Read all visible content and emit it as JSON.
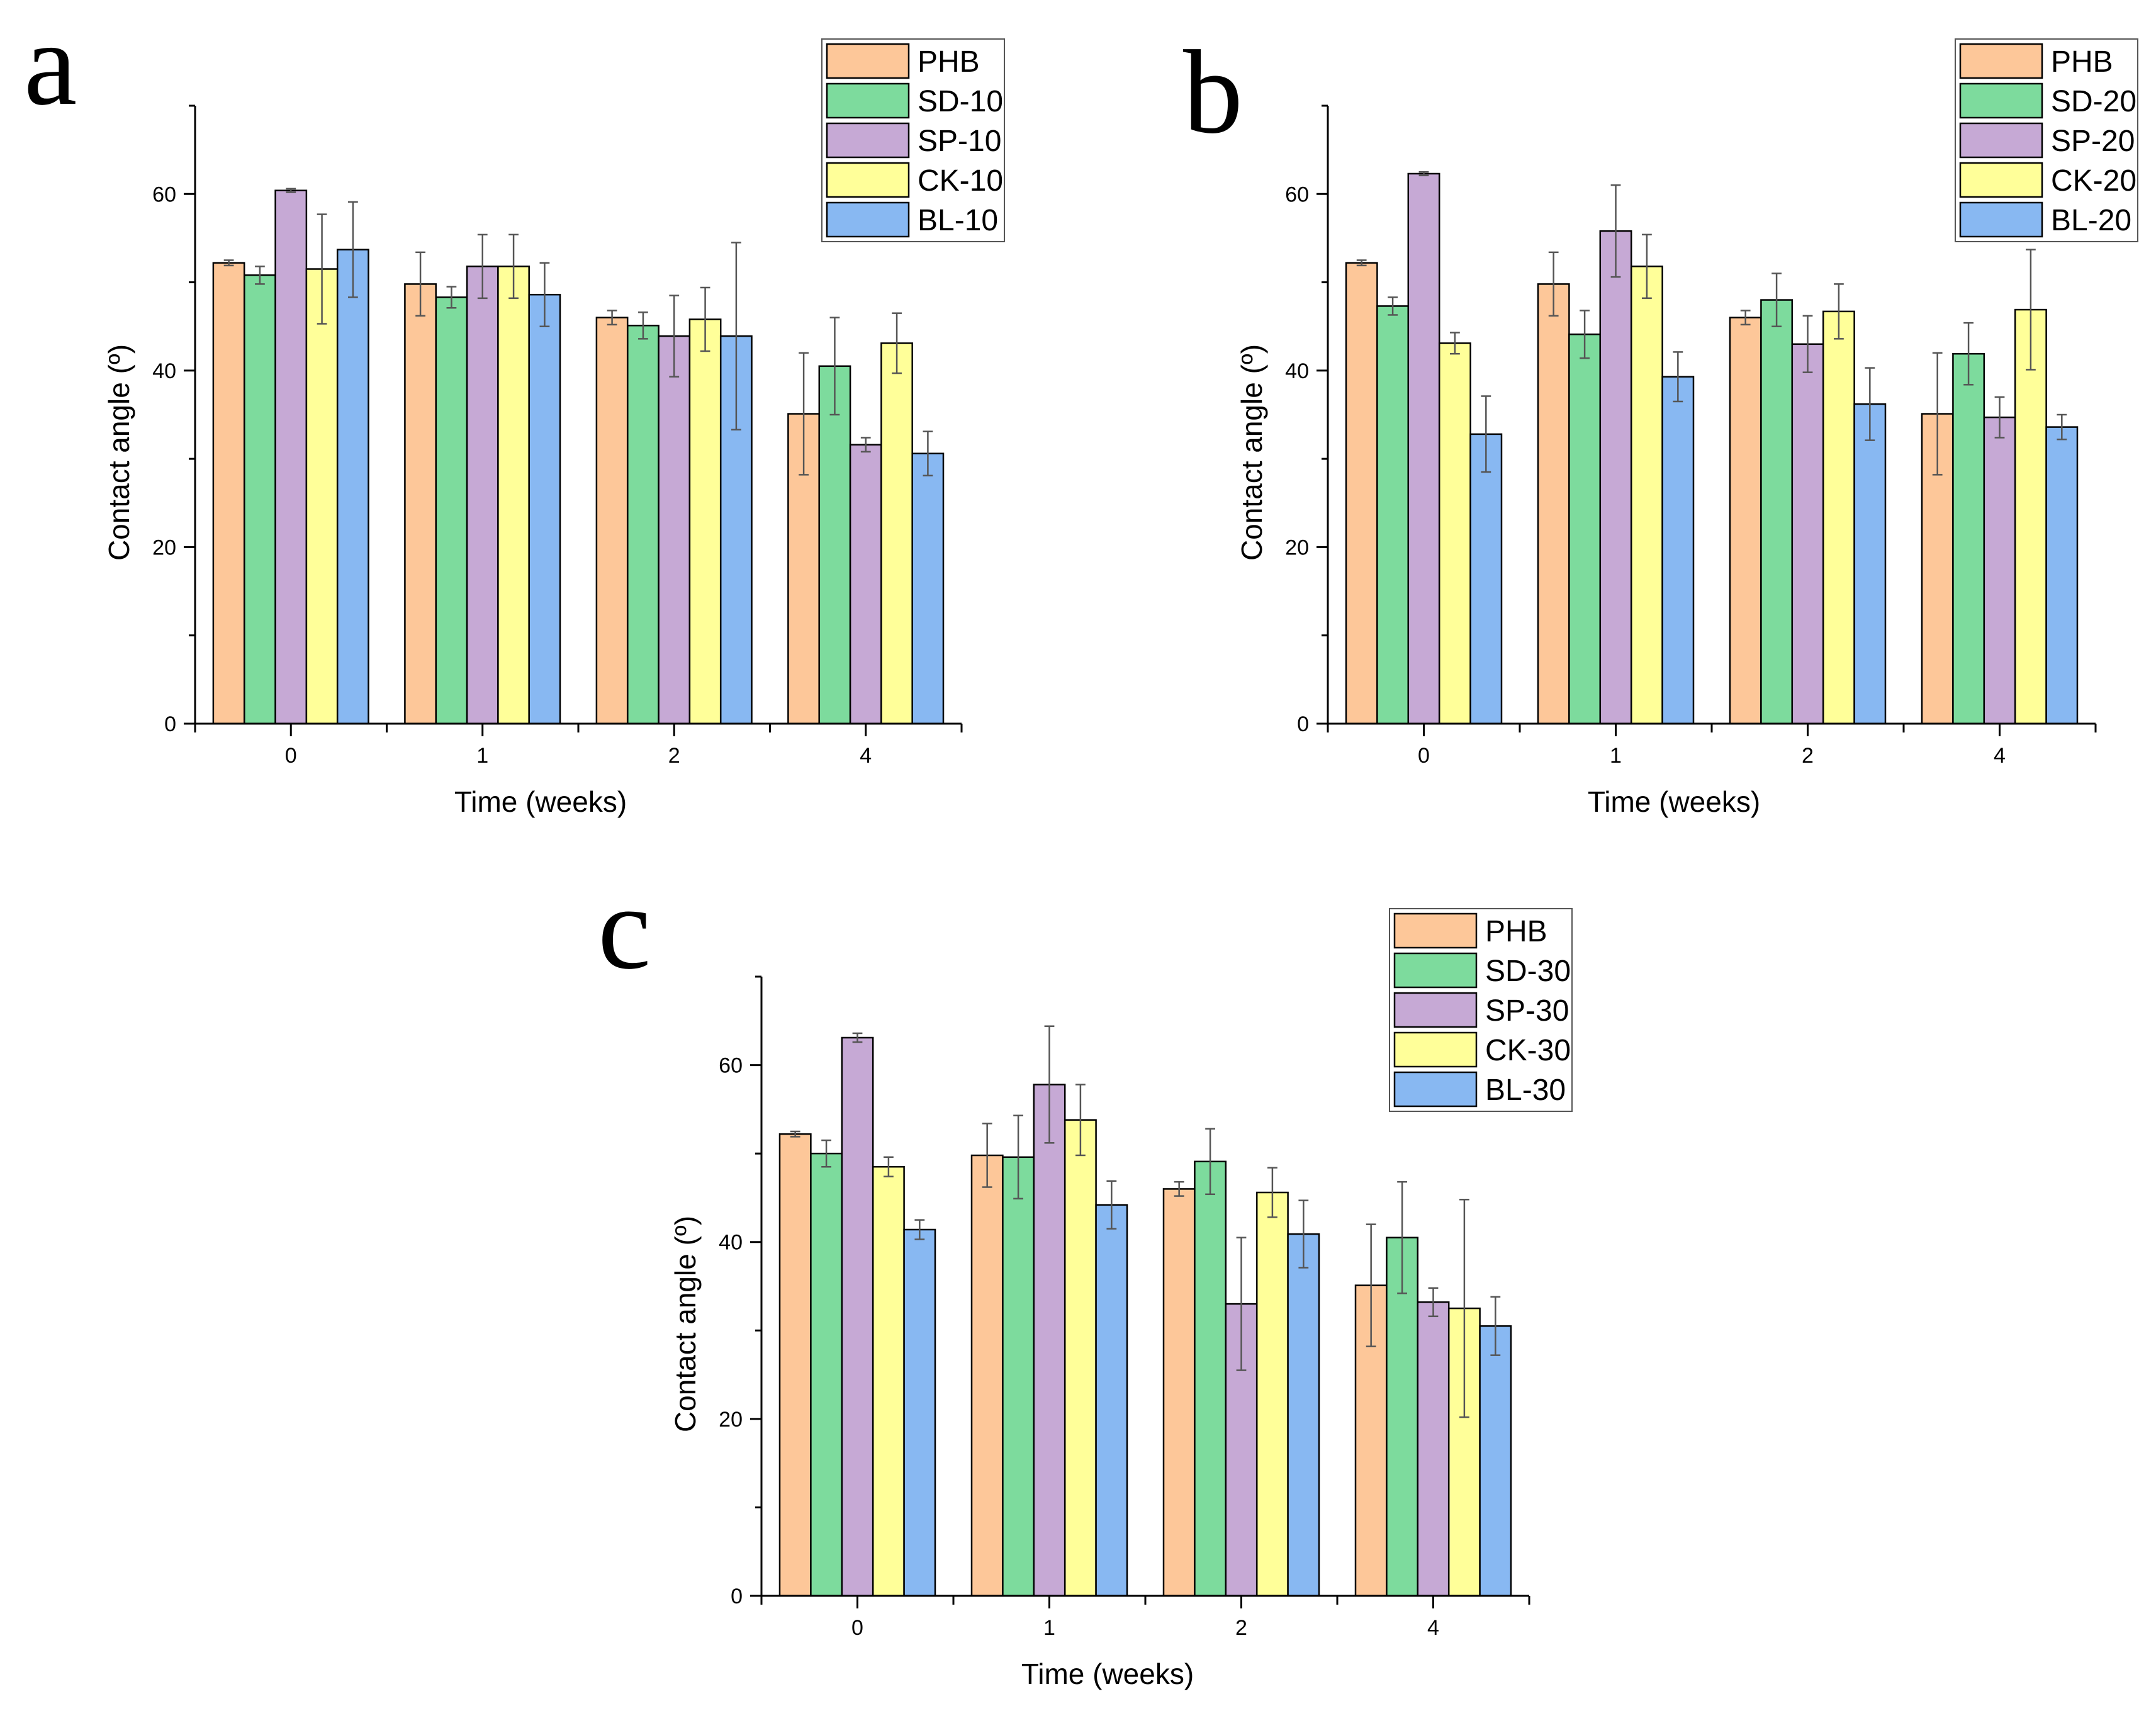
{
  "colors": {
    "PHB": "#FDC799",
    "SD": "#7DDB9D",
    "SP": "#C6A9D5",
    "CK": "#FFFF99",
    "BL": "#88B8F2",
    "axis": "#000000",
    "bar_stroke": "#000000"
  },
  "chart_data": [
    {
      "panel": "a",
      "type": "bar",
      "title": "",
      "xlabel": "Time (weeks)",
      "ylabel": "Contact angle (º)",
      "categories": [
        "0",
        "1",
        "2",
        "4"
      ],
      "ylim": [
        0,
        70
      ],
      "yticks": [
        "0",
        "20",
        "40",
        "60"
      ],
      "grid": false,
      "legend_position": "top-right",
      "series": [
        {
          "name": "PHB",
          "key": "PHB",
          "values": [
            52.2,
            49.8,
            46.0,
            35.1
          ],
          "errors": [
            0.3,
            3.6,
            0.8,
            6.9
          ]
        },
        {
          "name": "SD-10",
          "key": "SD",
          "values": [
            50.8,
            48.3,
            45.1,
            40.5
          ],
          "errors": [
            1.0,
            1.2,
            1.5,
            5.5
          ]
        },
        {
          "name": "SP-10",
          "key": "SP",
          "values": [
            60.4,
            51.8,
            43.9,
            31.6
          ],
          "errors": [
            0.2,
            3.6,
            4.6,
            0.8
          ]
        },
        {
          "name": "CK-10",
          "key": "CK",
          "values": [
            51.5,
            51.8,
            45.8,
            43.1
          ],
          "errors": [
            6.2,
            3.6,
            3.6,
            3.4
          ]
        },
        {
          "name": "BL-10",
          "key": "BL",
          "values": [
            53.7,
            48.6,
            43.9,
            30.6
          ],
          "errors": [
            5.4,
            3.6,
            10.6,
            2.5
          ]
        }
      ]
    },
    {
      "panel": "b",
      "type": "bar",
      "title": "",
      "xlabel": "Time (weeks)",
      "ylabel": "Contact angle (º)",
      "categories": [
        "0",
        "1",
        "2",
        "4"
      ],
      "ylim": [
        0,
        70
      ],
      "yticks": [
        "0",
        "20",
        "40",
        "60"
      ],
      "grid": false,
      "legend_position": "top-right",
      "series": [
        {
          "name": "PHB",
          "key": "PHB",
          "values": [
            52.2,
            49.8,
            46.0,
            35.1
          ],
          "errors": [
            0.3,
            3.6,
            0.8,
            6.9
          ]
        },
        {
          "name": "SD-20",
          "key": "SD",
          "values": [
            47.3,
            44.1,
            48.0,
            41.9
          ],
          "errors": [
            1.0,
            2.7,
            3.0,
            3.5
          ]
        },
        {
          "name": "SP-20",
          "key": "SP",
          "values": [
            62.3,
            55.8,
            43.0,
            34.7
          ],
          "errors": [
            0.2,
            5.2,
            3.2,
            2.3
          ]
        },
        {
          "name": "CK-20",
          "key": "CK",
          "values": [
            43.1,
            51.8,
            46.7,
            46.9
          ],
          "errors": [
            1.2,
            3.6,
            3.1,
            6.8
          ]
        },
        {
          "name": "BL-20",
          "key": "BL",
          "values": [
            32.8,
            39.3,
            36.2,
            33.6
          ],
          "errors": [
            4.3,
            2.8,
            4.1,
            1.4
          ]
        }
      ]
    },
    {
      "panel": "c",
      "type": "bar",
      "title": "",
      "xlabel": "Time (weeks)",
      "ylabel": "Contact angle (º)",
      "categories": [
        "0",
        "1",
        "2",
        "4"
      ],
      "ylim": [
        0,
        70
      ],
      "yticks": [
        "0",
        "20",
        "40",
        "60"
      ],
      "grid": false,
      "legend_position": "top-right",
      "series": [
        {
          "name": "PHB",
          "key": "PHB",
          "values": [
            52.2,
            49.8,
            46.0,
            35.1
          ],
          "errors": [
            0.3,
            3.6,
            0.8,
            6.9
          ]
        },
        {
          "name": "SD-30",
          "key": "SD",
          "values": [
            50.0,
            49.6,
            49.1,
            40.5
          ],
          "errors": [
            1.5,
            4.7,
            3.7,
            6.3
          ]
        },
        {
          "name": "SP-30",
          "key": "SP",
          "values": [
            63.1,
            57.8,
            33.0,
            33.2
          ],
          "errors": [
            0.5,
            6.6,
            7.5,
            1.6
          ]
        },
        {
          "name": "CK-30",
          "key": "CK",
          "values": [
            48.5,
            53.8,
            45.6,
            32.5
          ],
          "errors": [
            1.1,
            4.0,
            2.8,
            12.3
          ]
        },
        {
          "name": "BL-30",
          "key": "BL",
          "values": [
            41.4,
            44.2,
            40.9,
            30.5
          ],
          "errors": [
            1.1,
            2.7,
            3.8,
            3.3
          ]
        }
      ]
    }
  ]
}
